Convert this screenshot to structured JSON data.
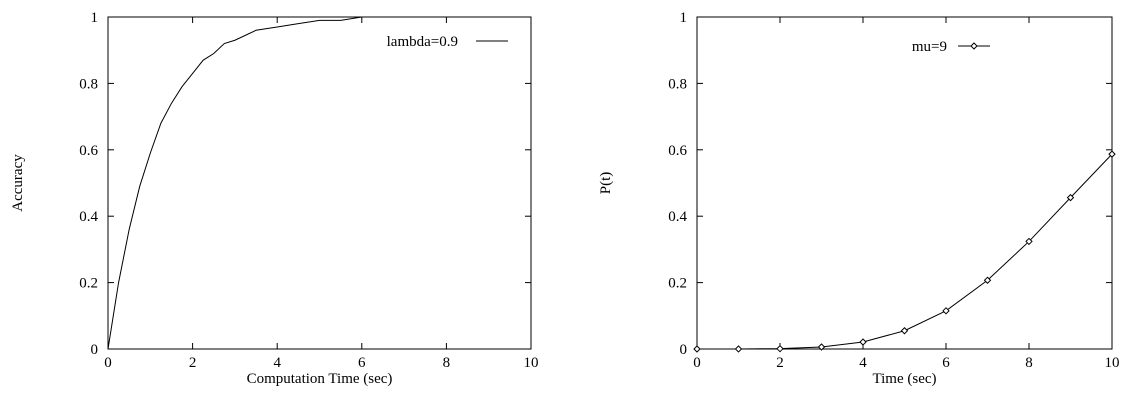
{
  "chart_data": [
    {
      "type": "line",
      "title": "",
      "xlabel": "Computation Time (sec)",
      "ylabel": "Accuracy",
      "xlim": [
        0,
        10
      ],
      "ylim": [
        0,
        1
      ],
      "xticks": [
        0,
        2,
        4,
        6,
        8,
        10
      ],
      "yticks": [
        0,
        0.2,
        0.4,
        0.6,
        0.8,
        1
      ],
      "xtick_labels": [
        "0",
        "2",
        "4",
        "6",
        "8",
        "10"
      ],
      "ytick_labels": [
        "0",
        "0.2",
        "0.4",
        "0.6",
        "0.8",
        "1"
      ],
      "grid": false,
      "legend_position": "top-right",
      "series": [
        {
          "name": "lambda=0.9",
          "color": "#000000",
          "markers": false,
          "x": [
            0,
            0.25,
            0.5,
            0.75,
            1,
            1.25,
            1.5,
            1.75,
            2,
            2.25,
            2.5,
            2.75,
            3,
            3.5,
            4,
            4.5,
            5,
            5.5,
            6,
            6.5,
            7,
            7.5,
            8,
            8.5,
            9,
            9.5,
            10
          ],
          "y": [
            0,
            0.2,
            0.36,
            0.49,
            0.59,
            0.68,
            0.74,
            0.79,
            0.83,
            0.87,
            0.89,
            0.92,
            0.93,
            0.96,
            0.97,
            0.98,
            0.99,
            0.99,
            1.0,
            1.0,
            1.0,
            1.0,
            1.0,
            1.0,
            1.0,
            1.0,
            1.0
          ]
        }
      ]
    },
    {
      "type": "line",
      "title": "",
      "xlabel": "Time (sec)",
      "ylabel": "P(t)",
      "xlim": [
        0,
        10
      ],
      "ylim": [
        0,
        1
      ],
      "xticks": [
        0,
        2,
        4,
        6,
        8,
        10
      ],
      "yticks": [
        0,
        0.2,
        0.4,
        0.6,
        0.8,
        1
      ],
      "xtick_labels": [
        "0",
        "2",
        "4",
        "6",
        "8",
        "10"
      ],
      "ytick_labels": [
        "0",
        "0.2",
        "0.4",
        "0.6",
        "0.8",
        "1"
      ],
      "grid": false,
      "legend_position": "top-center",
      "series": [
        {
          "name": "mu=9",
          "color": "#000000",
          "markers": true,
          "x": [
            0,
            1,
            2,
            3,
            4,
            5,
            6,
            7,
            8,
            9,
            10
          ],
          "y": [
            0,
            0.0001,
            0.001,
            0.006,
            0.021,
            0.055,
            0.115,
            0.207,
            0.324,
            0.456,
            0.587
          ]
        }
      ]
    }
  ]
}
